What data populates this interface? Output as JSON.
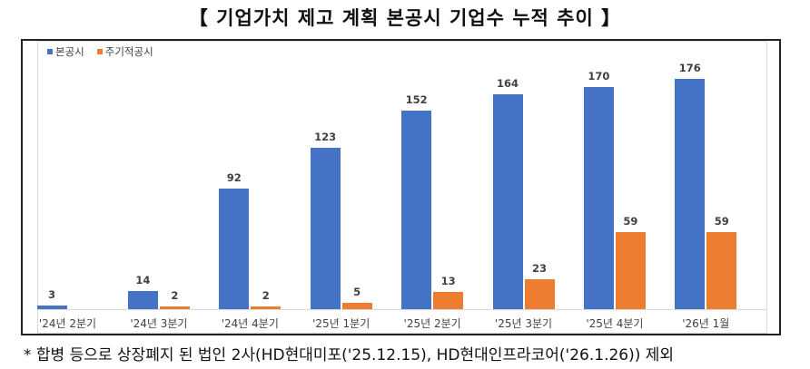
{
  "title": "【 기업가치 제고 계획 본공시 기업수 누적 추이 】",
  "footnote": "* 합병 등으로 상장폐지 된 법인 2사(HD현대미포('25.12.15), HD현대인프라코어('26.1.26)) 제외",
  "legend": [
    {
      "label": "본공시",
      "color": "#4472C4",
      "icon": "square-swatch-icon"
    },
    {
      "label": "주기적공시",
      "color": "#ED7D31",
      "icon": "square-swatch-icon"
    }
  ],
  "chart_data": {
    "type": "bar",
    "title": "기업가치 제고 계획 본공시 기업수 누적 추이",
    "xlabel": "",
    "ylabel": "",
    "ylim": [
      0,
      180
    ],
    "grid": false,
    "legend_position": "top-left",
    "categories": [
      "'24년 2분기",
      "'24년 3분기",
      "'24년 4분기",
      "'25년 1분기",
      "'25년 2분기",
      "'25년 3분기",
      "'25년 4분기",
      "'26년 1월"
    ],
    "series": [
      {
        "name": "본공시",
        "color": "#4472C4",
        "values": [
          3,
          14,
          92,
          123,
          152,
          164,
          170,
          176
        ]
      },
      {
        "name": "주기적공시",
        "color": "#ED7D31",
        "values": [
          null,
          2,
          2,
          5,
          13,
          23,
          59,
          59
        ]
      }
    ],
    "data_labels": true
  }
}
